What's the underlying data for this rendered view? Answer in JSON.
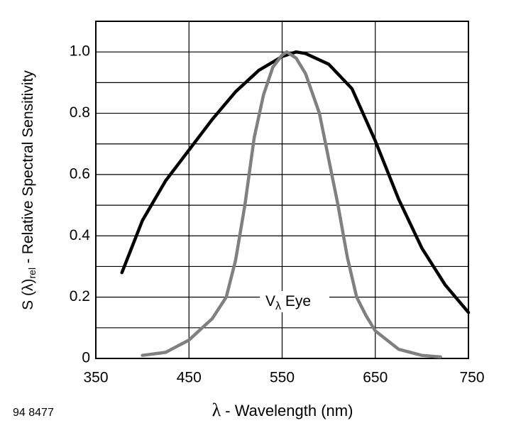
{
  "chart_data": {
    "type": "line",
    "xlim": [
      350,
      750
    ],
    "ylim": [
      0,
      1.1
    ],
    "xticks": [
      350,
      450,
      550,
      650,
      750
    ],
    "yticks": [
      0,
      0.2,
      0.4,
      0.6,
      {
        "value": 0.8,
        "label": "0.8"
      },
      {
        "value": 1,
        "label": "1.0"
      }
    ],
    "ygrid": [
      0.1,
      0.2,
      0.3,
      0.4,
      0.5,
      0.6,
      0.7,
      0.8,
      0.9,
      1
    ],
    "xgrid": [
      450,
      550,
      650
    ],
    "grid": true,
    "x_label": [
      "λ",
      " - Wavelength (nm)"
    ],
    "y_label": [
      "S (λ)",
      "rel",
      " - Relative Spectral Sensitivity"
    ],
    "annotation": [
      "V",
      "λ",
      " Eye"
    ],
    "figure_code": "94 8477",
    "series": [
      {
        "color": "#000000",
        "x": [
          378,
          400,
          425,
          450,
          475,
          500,
          525,
          550,
          565,
          575,
          600,
          625,
          650,
          675,
          700,
          725,
          750
        ],
        "values": [
          0.28,
          0.45,
          0.58,
          0.68,
          0.78,
          0.87,
          0.94,
          0.985,
          1.0,
          0.995,
          0.96,
          0.88,
          0.71,
          0.52,
          0.36,
          0.24,
          0.15
        ]
      },
      {
        "color": "#808080",
        "x": [
          400,
          425,
          450,
          475,
          490,
          500,
          510,
          520,
          530,
          540,
          550,
          555,
          565,
          575,
          590,
          600,
          610,
          620,
          630,
          640,
          650,
          675,
          700,
          720
        ],
        "values": [
          0.01,
          0.02,
          0.06,
          0.13,
          0.2,
          0.32,
          0.5,
          0.72,
          0.86,
          0.95,
          0.99,
          1.0,
          0.98,
          0.93,
          0.8,
          0.65,
          0.5,
          0.33,
          0.2,
          0.14,
          0.09,
          0.03,
          0.01,
          0.005
        ]
      }
    ]
  }
}
